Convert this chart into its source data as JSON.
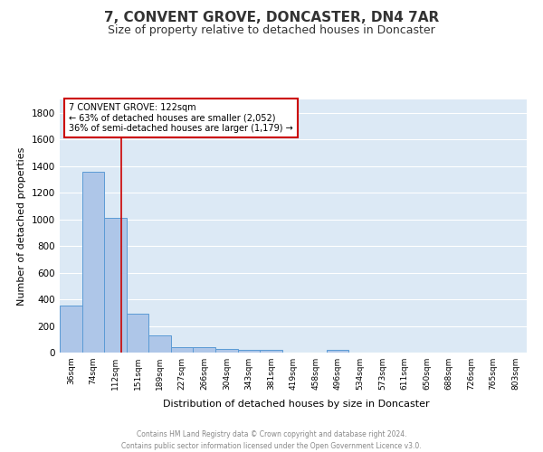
{
  "title": "7, CONVENT GROVE, DONCASTER, DN4 7AR",
  "subtitle": "Size of property relative to detached houses in Doncaster",
  "xlabel": "Distribution of detached houses by size in Doncaster",
  "ylabel": "Number of detached properties",
  "bar_color": "#aec6e8",
  "bar_edge_color": "#5b9bd5",
  "background_color": "#dce9f5",
  "grid_color": "#ffffff",
  "categories": [
    "36sqm",
    "74sqm",
    "112sqm",
    "151sqm",
    "189sqm",
    "227sqm",
    "266sqm",
    "304sqm",
    "343sqm",
    "381sqm",
    "419sqm",
    "458sqm",
    "496sqm",
    "534sqm",
    "573sqm",
    "611sqm",
    "650sqm",
    "688sqm",
    "726sqm",
    "765sqm",
    "803sqm"
  ],
  "values": [
    355,
    1355,
    1010,
    295,
    130,
    40,
    38,
    30,
    20,
    18,
    0,
    0,
    20,
    0,
    0,
    0,
    0,
    0,
    0,
    0,
    0
  ],
  "ylim": [
    0,
    1900
  ],
  "yticks": [
    0,
    200,
    400,
    600,
    800,
    1000,
    1200,
    1400,
    1600,
    1800
  ],
  "property_line_x": 2.25,
  "annotation_text": "7 CONVENT GROVE: 122sqm\n← 63% of detached houses are smaller (2,052)\n36% of semi-detached houses are larger (1,179) →",
  "footer_line1": "Contains HM Land Registry data © Crown copyright and database right 2024.",
  "footer_line2": "Contains public sector information licensed under the Open Government Licence v3.0.",
  "title_fontsize": 11,
  "subtitle_fontsize": 9,
  "annotation_fontsize": 7,
  "ylabel_fontsize": 8,
  "xlabel_fontsize": 8,
  "footer_fontsize": 5.5,
  "xtick_fontsize": 6.5,
  "ytick_fontsize": 7.5,
  "annotation_box_color": "#ffffff",
  "annotation_box_edge": "#cc0000",
  "red_line_color": "#cc0000",
  "title_color": "#333333",
  "subtitle_color": "#333333",
  "footer_color": "#888888"
}
